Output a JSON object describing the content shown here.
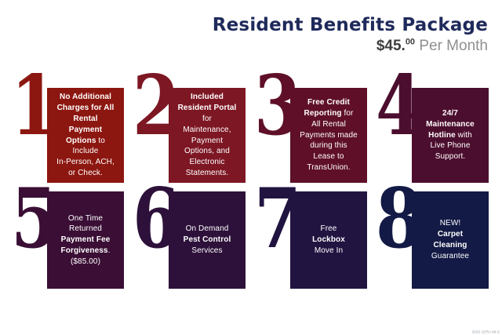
{
  "header": {
    "title": "Resident Benefits Package",
    "price": "$45.",
    "price_cents": "00",
    "period": " Per Month"
  },
  "palette": {
    "title_navy": "#1F2A5B",
    "price_gray": "#3E3E3E",
    "period_gray": "#8F8F8F",
    "background": "#FFFFFF"
  },
  "benefits": [
    {
      "number": "1",
      "color": "#8C1710",
      "segments": [
        {
          "text": "No Additional",
          "bold": true
        },
        {
          "break": true
        },
        {
          "text": "Charges for All",
          "bold": true
        },
        {
          "break": true
        },
        {
          "text": "Rental",
          "bold": true
        },
        {
          "break": true
        },
        {
          "text": "Payment",
          "bold": true
        },
        {
          "break": true
        },
        {
          "text": "Options",
          "bold": true
        },
        {
          "text": " to",
          "bold": false
        },
        {
          "break": true
        },
        {
          "text": "Include",
          "bold": false
        },
        {
          "break": true
        },
        {
          "text": "In-Person, ACH,",
          "bold": false
        },
        {
          "break": true
        },
        {
          "text": "or Check.",
          "bold": false
        }
      ]
    },
    {
      "number": "2",
      "color": "#7D1723",
      "segments": [
        {
          "text": "Included",
          "bold": true
        },
        {
          "break": true
        },
        {
          "text": "Resident Portal",
          "bold": true
        },
        {
          "break": true
        },
        {
          "text": "for",
          "bold": false
        },
        {
          "break": true
        },
        {
          "text": "Maintenance,",
          "bold": false
        },
        {
          "break": true
        },
        {
          "text": "Payment",
          "bold": false
        },
        {
          "break": true
        },
        {
          "text": "Options, and",
          "bold": false
        },
        {
          "break": true
        },
        {
          "text": "Electronic",
          "bold": false
        },
        {
          "break": true
        },
        {
          "text": "Statements.",
          "bold": false
        }
      ]
    },
    {
      "number": "3",
      "color": "#5F1028",
      "segments": [
        {
          "text": "Free Credit",
          "bold": true
        },
        {
          "break": true
        },
        {
          "text": "Reporting",
          "bold": true
        },
        {
          "text": " for",
          "bold": false
        },
        {
          "break": true
        },
        {
          "text": "All Rental",
          "bold": false
        },
        {
          "break": true
        },
        {
          "text": "Payments made",
          "bold": false
        },
        {
          "break": true
        },
        {
          "text": "during this",
          "bold": false
        },
        {
          "break": true
        },
        {
          "text": "Lease to",
          "bold": false
        },
        {
          "break": true
        },
        {
          "text": "TransUnion.",
          "bold": false
        }
      ]
    },
    {
      "number": "4",
      "color": "#4C0E2E",
      "segments": [
        {
          "text": "24/7",
          "bold": true
        },
        {
          "break": true
        },
        {
          "text": "Maintenance",
          "bold": true
        },
        {
          "break": true
        },
        {
          "text": "Hotline",
          "bold": true
        },
        {
          "text": " with",
          "bold": false
        },
        {
          "break": true
        },
        {
          "text": "Live Phone",
          "bold": false
        },
        {
          "break": true
        },
        {
          "text": "Support.",
          "bold": false
        }
      ]
    },
    {
      "number": "5",
      "color": "#3A0E35",
      "segments": [
        {
          "text": "One Time",
          "bold": false
        },
        {
          "break": true
        },
        {
          "text": "Returned",
          "bold": false
        },
        {
          "break": true
        },
        {
          "text": "Payment Fee",
          "bold": true
        },
        {
          "break": true
        },
        {
          "text": "Forgiveness",
          "bold": true
        },
        {
          "text": ".",
          "bold": false
        },
        {
          "break": true
        },
        {
          "text": "($85.00)",
          "bold": false
        }
      ]
    },
    {
      "number": "6",
      "color": "#2D113A",
      "segments": [
        {
          "text": "On Demand",
          "bold": false
        },
        {
          "break": true
        },
        {
          "text": "Pest Control",
          "bold": true
        },
        {
          "break": true
        },
        {
          "text": "Services",
          "bold": false
        }
      ]
    },
    {
      "number": "7",
      "color": "#221441",
      "segments": [
        {
          "text": "Free",
          "bold": false
        },
        {
          "break": true
        },
        {
          "text": "Lockbox",
          "bold": true
        },
        {
          "break": true
        },
        {
          "text": "Move In",
          "bold": false
        }
      ]
    },
    {
      "number": "8",
      "color": "#131A45",
      "segments": [
        {
          "text": "NEW!",
          "bold": false
        },
        {
          "break": true
        },
        {
          "text": "Carpet",
          "bold": true
        },
        {
          "break": true
        },
        {
          "text": "Cleaning",
          "bold": true
        },
        {
          "break": true
        },
        {
          "text": "Guarantee",
          "bold": false
        }
      ]
    }
  ],
  "footer": {
    "watermark": "2025 LERA MLS"
  }
}
